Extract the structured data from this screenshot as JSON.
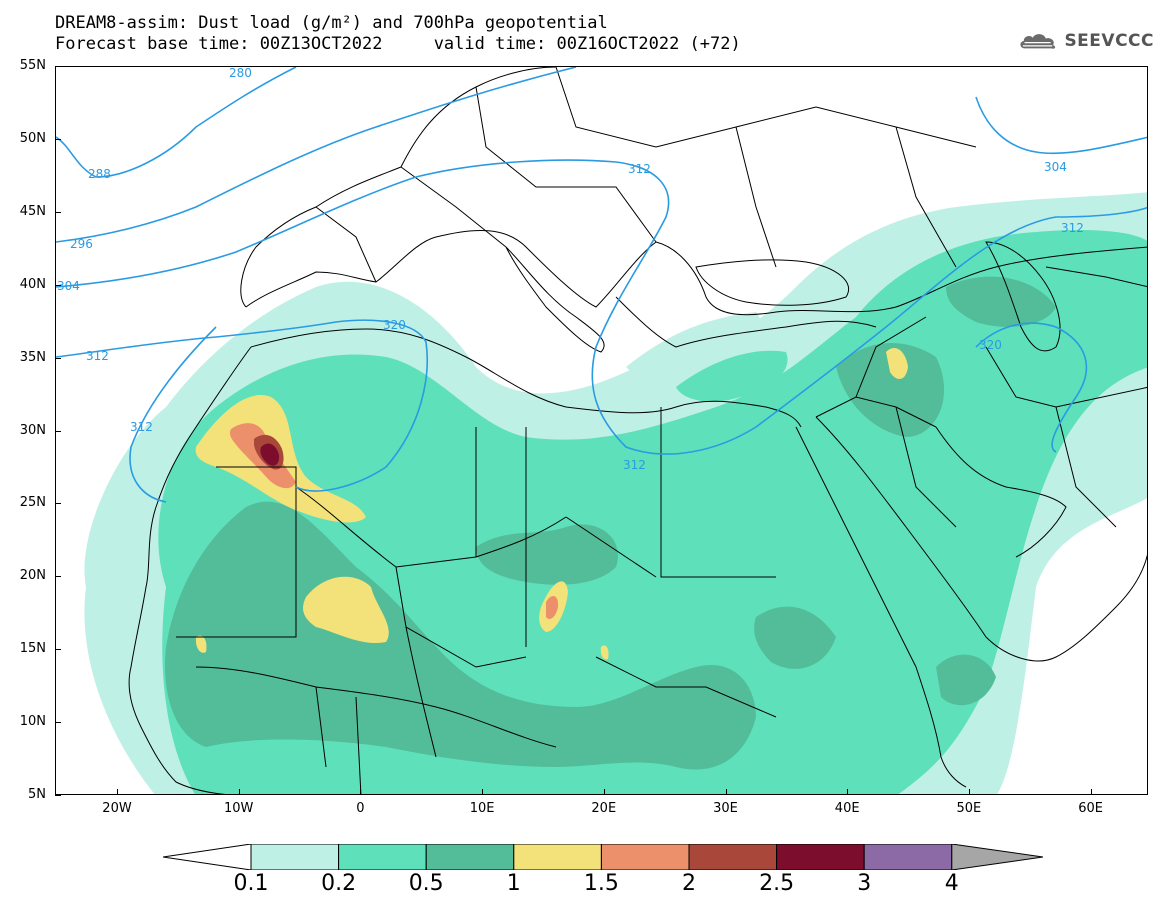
{
  "title": {
    "line1": "DREAM8-assim: Dust load (g/m²) and 700hPa geopotential",
    "line2": "Forecast base time: 00Z13OCT2022     valid time: 00Z16OCT2022 (+72)"
  },
  "logo": {
    "text": "SEEVCCC",
    "icon": "cloud-icon"
  },
  "axes": {
    "lat_labels": [
      "55N",
      "50N",
      "45N",
      "40N",
      "35N",
      "30N",
      "25N",
      "20N",
      "15N",
      "10N",
      "5N"
    ],
    "lon_labels": [
      "20W",
      "10W",
      "0",
      "10E",
      "20E",
      "30E",
      "40E",
      "50E",
      "60E"
    ]
  },
  "colorbar": {
    "labels": [
      "0.1",
      "0.2",
      "0.5",
      "1",
      "1.5",
      "2",
      "2.5",
      "3",
      "4"
    ],
    "colors": [
      "#bff0e6",
      "#5ee0bb",
      "#52bd98",
      "#f3e27a",
      "#ec8f6b",
      "#a8473a",
      "#7c0d2c",
      "#8b6aa6",
      "#a6a6a6"
    ],
    "left_arrow_color": "#ffffff",
    "right_arrow_color": "#a6a6a6"
  },
  "contours": {
    "color": "#2a9be3",
    "labels": [
      "288",
      "296",
      "304",
      "312",
      "280",
      "312",
      "320",
      "312",
      "312",
      "304",
      "312",
      "320"
    ]
  }
}
